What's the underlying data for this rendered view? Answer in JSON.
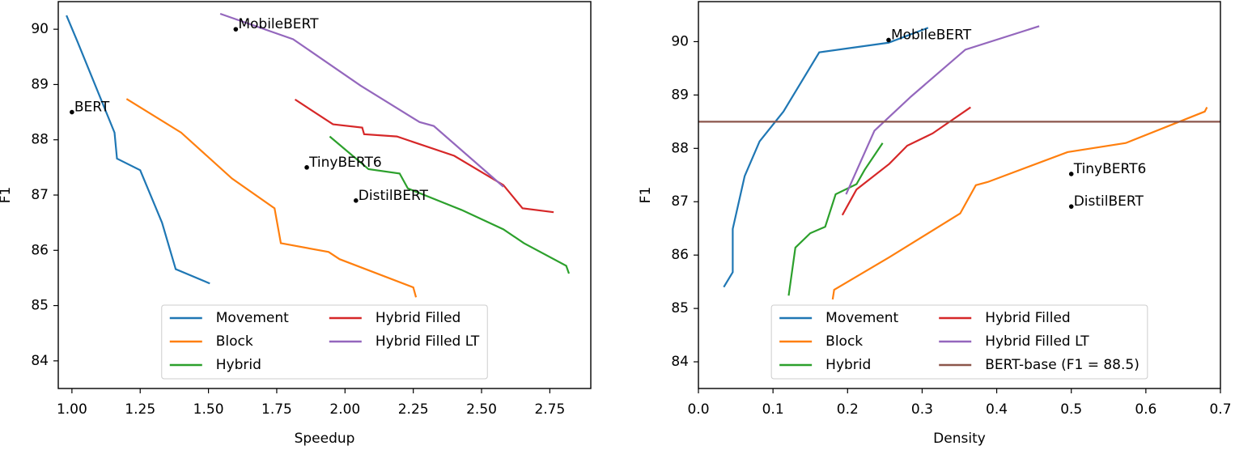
{
  "chart_data": [
    {
      "type": "line",
      "xlabel": "Speedup",
      "ylabel": "F1",
      "xlim": [
        0.95,
        2.9
      ],
      "ylim": [
        83.5,
        90.5
      ],
      "xticks": [
        {
          "value": 1.0,
          "label": "1.00"
        },
        1.25,
        {
          "value": 1.5,
          "label": "1.50"
        },
        1.75,
        {
          "value": 2.0,
          "label": "2.00"
        },
        2.25,
        {
          "value": 2.5,
          "label": "2.50"
        },
        2.75
      ],
      "yticks": [
        84,
        85,
        86,
        87,
        88,
        89,
        90
      ],
      "legend": "lower center",
      "series": [
        {
          "name": "Movement",
          "color": "#1f77b4",
          "x": [
            0.98,
            1.02,
            1.156,
            1.165,
            1.25,
            1.33,
            1.38,
            1.505
          ],
          "values": [
            90.25,
            89.78,
            88.13,
            87.66,
            87.45,
            86.5,
            85.66,
            85.4
          ]
        },
        {
          "name": "Block",
          "color": "#ff7f0e",
          "x": [
            1.2,
            1.4,
            1.586,
            1.742,
            1.765,
            1.94,
            1.98,
            2.25,
            2.26
          ],
          "values": [
            88.74,
            88.13,
            87.3,
            86.76,
            86.13,
            85.97,
            85.84,
            85.33,
            85.15
          ]
        },
        {
          "name": "Hybrid",
          "color": "#2ca02c",
          "x": [
            1.944,
            2.086,
            2.2,
            2.23,
            2.427,
            2.58,
            2.655,
            2.81,
            2.82
          ],
          "values": [
            88.06,
            87.47,
            87.39,
            87.12,
            86.73,
            86.38,
            86.13,
            85.72,
            85.58
          ]
        },
        {
          "name": "Hybrid Filled",
          "color": "#d62728",
          "x": [
            1.817,
            1.956,
            2.063,
            2.07,
            2.19,
            2.4,
            2.58,
            2.65,
            2.764
          ],
          "values": [
            88.73,
            88.28,
            88.22,
            88.1,
            88.06,
            87.71,
            87.18,
            86.76,
            86.69
          ]
        },
        {
          "name": "Hybrid Filled LT",
          "color": "#9467bd",
          "x": [
            1.543,
            1.81,
            2.057,
            2.273,
            2.325,
            2.58
          ],
          "values": [
            90.28,
            89.82,
            88.98,
            88.32,
            88.25,
            87.15
          ]
        }
      ],
      "annotations": [
        {
          "text": "BERT",
          "x": 1.0,
          "y": 88.5
        },
        {
          "text": "MobileBERT",
          "x": 1.6,
          "y": 90.0
        },
        {
          "text": "TinyBERT6",
          "x": 1.86,
          "y": 87.5
        },
        {
          "text": "DistilBERT",
          "x": 2.04,
          "y": 86.9
        }
      ]
    },
    {
      "type": "line",
      "xlabel": "Density",
      "ylabel": "F1",
      "xlim": [
        0,
        0.7
      ],
      "ylim": [
        83.5,
        90.75
      ],
      "xticks": [
        {
          "value": 0,
          "label": "0.0"
        },
        0.1,
        0.2,
        0.3,
        0.4,
        0.5,
        0.6,
        0.7
      ],
      "yticks": [
        84,
        85,
        86,
        87,
        88,
        89,
        90
      ],
      "legend": "lower center",
      "series": [
        {
          "name": "Movement",
          "color": "#1f77b4",
          "x": [
            0.034,
            0.046,
            0.046,
            0.062,
            0.082,
            0.114,
            0.162,
            0.255,
            0.308
          ],
          "values": [
            85.4,
            85.68,
            86.49,
            87.48,
            88.13,
            88.69,
            89.8,
            89.98,
            90.26
          ]
        },
        {
          "name": "Block",
          "color": "#ff7f0e",
          "x": [
            0.18,
            0.182,
            0.256,
            0.351,
            0.372,
            0.388,
            0.495,
            0.573,
            0.679,
            0.682
          ],
          "values": [
            85.17,
            85.35,
            85.96,
            86.78,
            87.31,
            87.37,
            87.93,
            88.1,
            88.69,
            88.77
          ]
        },
        {
          "name": "Hybrid",
          "color": "#2ca02c",
          "x": [
            0.121,
            0.13,
            0.15,
            0.17,
            0.184,
            0.212,
            0.223,
            0.247
          ],
          "values": [
            85.24,
            86.14,
            86.41,
            86.53,
            87.14,
            87.33,
            87.6,
            88.1
          ]
        },
        {
          "name": "Hybrid Filled",
          "color": "#d62728",
          "x": [
            0.193,
            0.212,
            0.256,
            0.28,
            0.314,
            0.365
          ],
          "values": [
            86.75,
            87.23,
            87.71,
            88.05,
            88.28,
            88.77
          ]
        },
        {
          "name": "Hybrid Filled LT",
          "color": "#9467bd",
          "x": [
            0.198,
            0.236,
            0.285,
            0.358,
            0.457
          ],
          "values": [
            87.14,
            88.33,
            88.97,
            89.85,
            90.29
          ]
        }
      ],
      "reference_lines": [
        {
          "name": "BERT-base (F1 = 88.5)",
          "value": 88.5,
          "color": "#8c564b"
        }
      ],
      "annotations": [
        {
          "text": "MobileBERT",
          "x": 0.255,
          "y": 90.03
        },
        {
          "text": "TinyBERT6",
          "x": 0.5,
          "y": 87.52
        },
        {
          "text": "DistilBERT",
          "x": 0.5,
          "y": 86.91
        }
      ]
    }
  ]
}
